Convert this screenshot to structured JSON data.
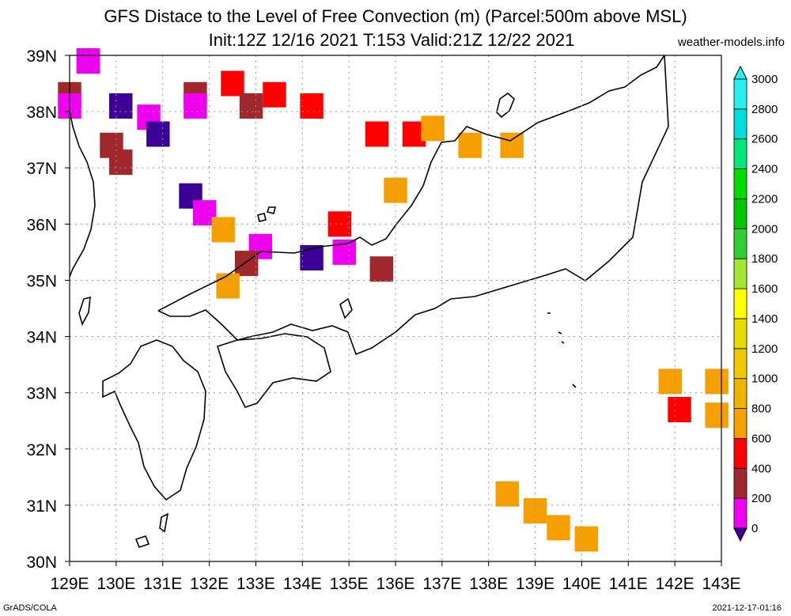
{
  "title_line1": "GFS Distace to the Level of Free Convection (m) (Parcel:500m above MSL)",
  "title_line2": "Init:12Z 12/16 2021 T:153 Valid:21Z 12/22 2021",
  "site": "weather-models.info",
  "footer_left": "GrADS/COLA",
  "footer_right": "2021-12-17-01:16",
  "lat_labels": [
    "39N",
    "38N",
    "37N",
    "36N",
    "35N",
    "34N",
    "33N",
    "32N",
    "31N",
    "30N"
  ],
  "lon_labels": [
    "129E",
    "130E",
    "131E",
    "132E",
    "133E",
    "134E",
    "135E",
    "136E",
    "137E",
    "138E",
    "139E",
    "140E",
    "141E",
    "142E",
    "143E"
  ],
  "colorbar": {
    "labels": [
      "0",
      "200",
      "400",
      "600",
      "800",
      "1000",
      "1200",
      "1400",
      "1600",
      "1800",
      "2000",
      "2200",
      "2400",
      "2600",
      "2800",
      "3000"
    ],
    "colors": [
      "#3c0096",
      "#f000f0",
      "#a0282d",
      "#ff0000",
      "#f5a000",
      "#f0b400",
      "#f0c800",
      "#e6dc00",
      "#ffff00",
      "#a0e632",
      "#32cd32",
      "#00c800",
      "#00dc00",
      "#00e678",
      "#00dcdc",
      "#28f0f0"
    ]
  },
  "field_cells": [
    {
      "lon": 129.4,
      "lat": 38.9,
      "v": "0"
    },
    {
      "lon": 129.4,
      "lat": 38.9,
      "v": "200"
    },
    {
      "lon": 129.0,
      "lat": 38.3,
      "v": "400"
    },
    {
      "lon": 129.0,
      "lat": 38.1,
      "v": "200"
    },
    {
      "lon": 130.1,
      "lat": 38.1,
      "v": "0"
    },
    {
      "lon": 130.7,
      "lat": 37.9,
      "v": "200"
    },
    {
      "lon": 130.9,
      "lat": 37.6,
      "v": "0"
    },
    {
      "lon": 129.9,
      "lat": 37.4,
      "v": "400"
    },
    {
      "lon": 130.1,
      "lat": 37.1,
      "v": "400"
    },
    {
      "lon": 131.7,
      "lat": 38.3,
      "v": "400"
    },
    {
      "lon": 132.5,
      "lat": 38.5,
      "v": "600"
    },
    {
      "lon": 133.4,
      "lat": 38.3,
      "v": "600"
    },
    {
      "lon": 134.2,
      "lat": 38.1,
      "v": "600"
    },
    {
      "lon": 132.9,
      "lat": 38.1,
      "v": "400"
    },
    {
      "lon": 131.7,
      "lat": 38.1,
      "v": "200"
    },
    {
      "lon": 135.6,
      "lat": 37.6,
      "v": "600"
    },
    {
      "lon": 136.4,
      "lat": 37.6,
      "v": "600"
    },
    {
      "lon": 136.8,
      "lat": 37.7,
      "v": "800"
    },
    {
      "lon": 137.6,
      "lat": 37.4,
      "v": "800"
    },
    {
      "lon": 138.5,
      "lat": 37.4,
      "v": "800"
    },
    {
      "lon": 136.0,
      "lat": 36.6,
      "v": "800"
    },
    {
      "lon": 131.6,
      "lat": 36.5,
      "v": "0"
    },
    {
      "lon": 131.9,
      "lat": 36.2,
      "v": "200"
    },
    {
      "lon": 132.3,
      "lat": 35.9,
      "v": "800"
    },
    {
      "lon": 133.1,
      "lat": 35.6,
      "v": "200"
    },
    {
      "lon": 132.8,
      "lat": 35.3,
      "v": "400"
    },
    {
      "lon": 134.2,
      "lat": 35.4,
      "v": "0"
    },
    {
      "lon": 134.9,
      "lat": 35.5,
      "v": "200"
    },
    {
      "lon": 134.8,
      "lat": 36.0,
      "v": "600"
    },
    {
      "lon": 135.7,
      "lat": 35.2,
      "v": "400"
    },
    {
      "lon": 132.4,
      "lat": 34.9,
      "v": "800"
    },
    {
      "lon": 141.9,
      "lat": 33.2,
      "v": "800"
    },
    {
      "lon": 142.1,
      "lat": 32.7,
      "v": "600"
    },
    {
      "lon": 142.9,
      "lat": 33.2,
      "v": "800"
    },
    {
      "lon": 142.9,
      "lat": 32.6,
      "v": "800"
    },
    {
      "lon": 138.4,
      "lat": 31.2,
      "v": "800"
    },
    {
      "lon": 139.0,
      "lat": 30.9,
      "v": "800"
    },
    {
      "lon": 139.5,
      "lat": 30.6,
      "v": "800"
    },
    {
      "lon": 140.1,
      "lat": 30.4,
      "v": "800"
    }
  ]
}
